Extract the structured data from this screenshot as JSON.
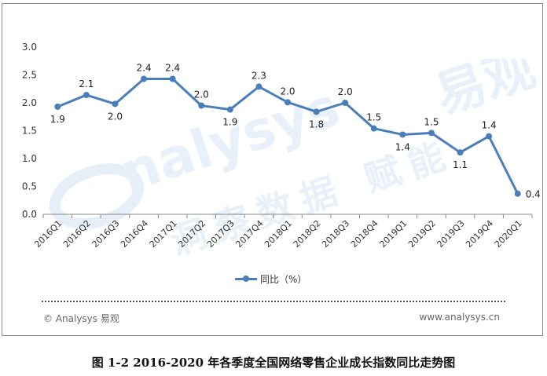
{
  "chart_data": {
    "type": "line",
    "categories": [
      "2016Q1",
      "2016Q2",
      "2016Q3",
      "2016Q4",
      "2017Q1",
      "2017Q2",
      "2017Q3",
      "2017Q4",
      "2018Q1",
      "2018Q2",
      "2018Q3",
      "2018Q4",
      "2019Q1",
      "2019Q2",
      "2019Q3",
      "2019Q4",
      "2020Q1"
    ],
    "series": [
      {
        "name": "同比（%）",
        "values": [
          1.9,
          2.1,
          2.0,
          2.4,
          2.4,
          2.0,
          1.9,
          2.3,
          2.0,
          1.8,
          2.0,
          1.5,
          1.4,
          1.5,
          1.1,
          1.4,
          0.4
        ]
      }
    ],
    "plotted_values": [
      1.93,
      2.14,
      1.98,
      2.43,
      2.43,
      1.95,
      1.88,
      2.29,
      2.01,
      1.84,
      2.0,
      1.54,
      1.43,
      1.46,
      1.11,
      1.4,
      0.37
    ],
    "label_positions": [
      "below",
      "above",
      "below",
      "above",
      "above",
      "above",
      "below",
      "above",
      "above",
      "below",
      "above",
      "above",
      "below",
      "above",
      "below",
      "above",
      "right"
    ],
    "ylim": [
      0,
      3.0
    ],
    "yticks": [
      "0.0",
      "0.5",
      "1.0",
      "1.5",
      "2.0",
      "2.5",
      "3.0"
    ],
    "grid": false,
    "legend_position": "bottom",
    "line_color": "#4a7ebb"
  },
  "legend_label": "同比（%）",
  "watermark": {
    "brand": "易观",
    "logo_text": "nalysys",
    "slogan": "洞察数据 赋能",
    "color": "#e6f0f8"
  },
  "footer": {
    "left": "© Analysys 易观",
    "right": "www.analysys.cn"
  },
  "caption": "图 1-2 2016-2020 年各季度全国网络零售企业成长指数同比走势图"
}
